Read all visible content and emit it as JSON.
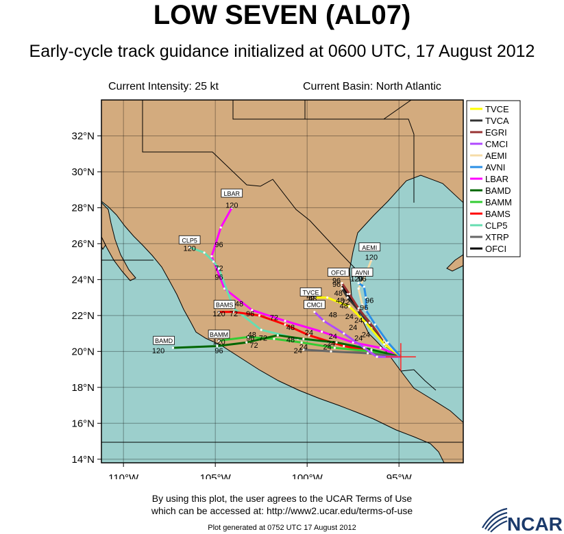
{
  "title": "LOW SEVEN (AL07)",
  "subtitle": "Early-cycle track guidance initialized at 0600 UTC, 17 August 2012",
  "current_intensity": "Current Intensity: 25 kt",
  "current_basin": "Current Basin: North Atlantic",
  "lat_labels": [
    "32°N",
    "30°N",
    "28°N",
    "26°N",
    "24°N",
    "22°N",
    "20°N",
    "18°N",
    "16°N",
    "14°N"
  ],
  "lon_labels": [
    "110°W",
    "105°W",
    "100°W",
    "95°W"
  ],
  "legend": [
    {
      "name": "TVCE",
      "color": "#ffff00"
    },
    {
      "name": "TVCA",
      "color": "#333333"
    },
    {
      "name": "EGRI",
      "color": "#993333"
    },
    {
      "name": "CMCI",
      "color": "#b04aff"
    },
    {
      "name": "AEMI",
      "color": "#f5dca8"
    },
    {
      "name": "AVNI",
      "color": "#2a8fe6"
    },
    {
      "name": "LBAR",
      "color": "#ff00ff"
    },
    {
      "name": "BAMD",
      "color": "#006600"
    },
    {
      "name": "BAMM",
      "color": "#33cc33"
    },
    {
      "name": "BAMS",
      "color": "#ff0000"
    },
    {
      "name": "CLP5",
      "color": "#66ddb0"
    },
    {
      "name": "XTRP",
      "color": "#666666"
    },
    {
      "name": "OFCI",
      "color": "#000000"
    }
  ],
  "end_labels": [
    {
      "text": "LBAR",
      "lon": -104.1,
      "lat": 28.7
    },
    {
      "text": "CLP5",
      "lon": -106.4,
      "lat": 26.1
    },
    {
      "text": "BAMS",
      "lon": -104.5,
      "lat": 22.5
    },
    {
      "text": "BAMM",
      "lon": -104.8,
      "lat": 20.85
    },
    {
      "text": "BAMD",
      "lon": -107.8,
      "lat": 20.5
    },
    {
      "text": "OFCI",
      "lon": -98.3,
      "lat": 24.3
    },
    {
      "text": "AVNI",
      "lon": -97.0,
      "lat": 24.3
    },
    {
      "text": "AEMI",
      "lon": -96.6,
      "lat": 25.7
    },
    {
      "text": "TVCE",
      "lon": -99.8,
      "lat": 23.2
    },
    {
      "text": "CMCI",
      "lon": -99.6,
      "lat": 22.5
    }
  ],
  "hour_labels": [
    {
      "text": "120",
      "lon": -104.1,
      "lat": 28.0
    },
    {
      "text": "96",
      "lon": -104.8,
      "lat": 25.8
    },
    {
      "text": "72",
      "lon": -104.8,
      "lat": 24.5
    },
    {
      "text": "96",
      "lon": -104.8,
      "lat": 24.0
    },
    {
      "text": "48",
      "lon": -103.7,
      "lat": 22.5
    },
    {
      "text": "120",
      "lon": -106.4,
      "lat": 25.6
    },
    {
      "text": "120",
      "lon": -104.8,
      "lat": 21.95
    },
    {
      "text": "72",
      "lon": -104.0,
      "lat": 21.95
    },
    {
      "text": "96",
      "lon": -103.1,
      "lat": 21.95
    },
    {
      "text": "72",
      "lon": -101.8,
      "lat": 21.75
    },
    {
      "text": "48",
      "lon": -100.9,
      "lat": 21.2
    },
    {
      "text": "48",
      "lon": -103.0,
      "lat": 20.8
    },
    {
      "text": "96",
      "lon": -103.1,
      "lat": 20.6
    },
    {
      "text": "72",
      "lon": -102.4,
      "lat": 20.6
    },
    {
      "text": "72",
      "lon": -102.9,
      "lat": 20.2
    },
    {
      "text": "48",
      "lon": -100.9,
      "lat": 20.5
    },
    {
      "text": "24",
      "lon": -99.9,
      "lat": 20.9
    },
    {
      "text": "24",
      "lon": -98.6,
      "lat": 20.7
    },
    {
      "text": "120",
      "lon": -104.8,
      "lat": 20.4
    },
    {
      "text": "96",
      "lon": -104.8,
      "lat": 19.9
    },
    {
      "text": "120",
      "lon": -108.1,
      "lat": 19.9
    },
    {
      "text": "24",
      "lon": -100.2,
      "lat": 20.1
    },
    {
      "text": "24",
      "lon": -100.5,
      "lat": 19.9
    },
    {
      "text": "24",
      "lon": -98.7,
      "lat": 20.3
    },
    {
      "text": "24",
      "lon": -98.9,
      "lat": 20.1
    },
    {
      "text": "24",
      "lon": -97.2,
      "lat": 20.6
    },
    {
      "text": "24",
      "lon": -96.8,
      "lat": 20.8
    },
    {
      "text": "24",
      "lon": -97.5,
      "lat": 21.2
    },
    {
      "text": "24",
      "lon": -97.2,
      "lat": 21.6
    },
    {
      "text": "48",
      "lon": -98.2,
      "lat": 22.7
    },
    {
      "text": "48",
      "lon": -98.6,
      "lat": 21.9
    },
    {
      "text": "48",
      "lon": -99.7,
      "lat": 22.8
    },
    {
      "text": "72",
      "lon": -97.9,
      "lat": 22.6
    },
    {
      "text": "96",
      "lon": -96.9,
      "lat": 22.3
    },
    {
      "text": "96",
      "lon": -98.4,
      "lat": 23.8
    },
    {
      "text": "96",
      "lon": -98.4,
      "lat": 23.6
    },
    {
      "text": "120",
      "lon": -97.3,
      "lat": 23.9
    },
    {
      "text": "96",
      "lon": -97.0,
      "lat": 23.9
    },
    {
      "text": "96",
      "lon": -96.6,
      "lat": 22.7
    },
    {
      "text": "120",
      "lon": -96.5,
      "lat": 25.1
    },
    {
      "text": "48",
      "lon": -99.8,
      "lat": 22.9
    },
    {
      "text": "48",
      "lon": -98.3,
      "lat": 23.1
    },
    {
      "text": "24",
      "lon": -97.7,
      "lat": 21.8
    },
    {
      "text": "48",
      "lon": -98.0,
      "lat": 22.4
    }
  ],
  "footer_line1": "By using this plot, the user agrees to the UCAR Terms of Use",
  "footer_line2": "which can be accessed at: http://www2.ucar.edu/terms-of-use",
  "generated": "Plot generated at 0752 UTC   17 August 2012",
  "ncar_logo": "NCAR",
  "colors": {
    "land": "#d3ab7e",
    "ocean": "#9ccfcc",
    "border": "#000000"
  },
  "chart_data": {
    "type": "map-tracks",
    "lon_range": [
      -111.2,
      -91.5
    ],
    "lat_range": [
      13.8,
      34.0
    ],
    "current_position": {
      "lon": -94.9,
      "lat": 19.7
    },
    "series": [
      {
        "name": "LBAR",
        "color": "#ff00ff",
        "points": [
          [
            -94.9,
            19.7
          ],
          [
            -96.0,
            20.2
          ],
          [
            -97.5,
            20.5
          ],
          [
            -99.2,
            21.1
          ],
          [
            -101.2,
            21.7
          ],
          [
            -103.0,
            22.3
          ],
          [
            -104.5,
            23.5
          ],
          [
            -105.2,
            25.3
          ],
          [
            -104.7,
            26.9
          ],
          [
            -104.1,
            28.0
          ]
        ]
      },
      {
        "name": "CLP5",
        "color": "#66ddb0",
        "points": [
          [
            -94.9,
            19.7
          ],
          [
            -96.8,
            20.2
          ],
          [
            -98.5,
            20.5
          ],
          [
            -100.5,
            20.7
          ],
          [
            -102.5,
            21.2
          ],
          [
            -104.0,
            22.4
          ],
          [
            -104.8,
            24.6
          ],
          [
            -105.1,
            25.0
          ],
          [
            -105.6,
            25.5
          ],
          [
            -106.4,
            25.8
          ]
        ]
      },
      {
        "name": "BAMS",
        "color": "#ff0000",
        "points": [
          [
            -94.9,
            19.7
          ],
          [
            -96.5,
            20.0
          ],
          [
            -98.0,
            20.3
          ],
          [
            -99.9,
            20.9
          ],
          [
            -101.2,
            21.5
          ],
          [
            -102.6,
            22.0
          ],
          [
            -104.0,
            22.2
          ],
          [
            -104.8,
            22.2
          ]
        ]
      },
      {
        "name": "BAMM",
        "color": "#33cc33",
        "points": [
          [
            -94.9,
            19.7
          ],
          [
            -96.5,
            20.0
          ],
          [
            -98.5,
            20.2
          ],
          [
            -100.3,
            20.5
          ],
          [
            -101.8,
            20.7
          ],
          [
            -103.2,
            20.8
          ],
          [
            -104.8,
            20.6
          ]
        ]
      },
      {
        "name": "BAMD",
        "color": "#006600",
        "points": [
          [
            -94.9,
            19.7
          ],
          [
            -96.5,
            20.1
          ],
          [
            -98.4,
            20.5
          ],
          [
            -100.2,
            20.7
          ],
          [
            -101.6,
            20.9
          ],
          [
            -103.3,
            20.5
          ],
          [
            -104.9,
            20.3
          ],
          [
            -107.3,
            20.2
          ]
        ]
      },
      {
        "name": "XTRP",
        "color": "#666666",
        "points": [
          [
            -94.9,
            19.7
          ],
          [
            -96.7,
            19.9
          ],
          [
            -98.7,
            20.0
          ],
          [
            -100.2,
            20.1
          ]
        ]
      },
      {
        "name": "OFCI",
        "color": "#000000",
        "points": [
          [
            -94.9,
            19.7
          ],
          [
            -95.7,
            20.4
          ],
          [
            -96.5,
            21.5
          ],
          [
            -97.3,
            22.5
          ],
          [
            -97.8,
            23.2
          ],
          [
            -98.1,
            23.7
          ]
        ]
      },
      {
        "name": "TVCA",
        "color": "#333333",
        "points": [
          [
            -94.9,
            19.7
          ],
          [
            -95.7,
            20.3
          ],
          [
            -96.5,
            21.3
          ],
          [
            -97.2,
            22.3
          ],
          [
            -97.8,
            23.0
          ],
          [
            -98.1,
            23.5
          ]
        ]
      },
      {
        "name": "TVCE",
        "color": "#ffff00",
        "points": [
          [
            -94.9,
            19.7
          ],
          [
            -95.8,
            20.4
          ],
          [
            -96.8,
            21.6
          ],
          [
            -97.7,
            22.5
          ],
          [
            -98.9,
            23.0
          ],
          [
            -99.6,
            23.0
          ]
        ]
      },
      {
        "name": "EGRI",
        "color": "#993333",
        "points": [
          [
            -94.9,
            19.7
          ],
          [
            -95.8,
            20.6
          ],
          [
            -96.6,
            21.6
          ],
          [
            -97.2,
            22.4
          ],
          [
            -97.7,
            23.2
          ],
          [
            -98.1,
            23.8
          ]
        ]
      },
      {
        "name": "CMCI",
        "color": "#b04aff",
        "points": [
          [
            -94.9,
            19.7
          ],
          [
            -96.2,
            19.7
          ],
          [
            -96.9,
            20.2
          ],
          [
            -98.0,
            21.0
          ],
          [
            -99.1,
            21.7
          ],
          [
            -99.6,
            22.2
          ]
        ]
      },
      {
        "name": "AEMI",
        "color": "#f5dca8",
        "points": [
          [
            -94.9,
            19.7
          ],
          [
            -95.7,
            20.5
          ],
          [
            -96.5,
            21.8
          ],
          [
            -97.0,
            22.6
          ],
          [
            -97.2,
            23.5
          ],
          [
            -96.8,
            24.3
          ],
          [
            -96.5,
            25.1
          ]
        ]
      },
      {
        "name": "AVNI",
        "color": "#2a8fe6",
        "points": [
          [
            -94.9,
            19.7
          ],
          [
            -95.6,
            20.5
          ],
          [
            -96.3,
            21.5
          ],
          [
            -96.8,
            22.3
          ],
          [
            -96.8,
            23.0
          ],
          [
            -96.9,
            23.6
          ],
          [
            -97.2,
            23.8
          ]
        ]
      }
    ]
  }
}
